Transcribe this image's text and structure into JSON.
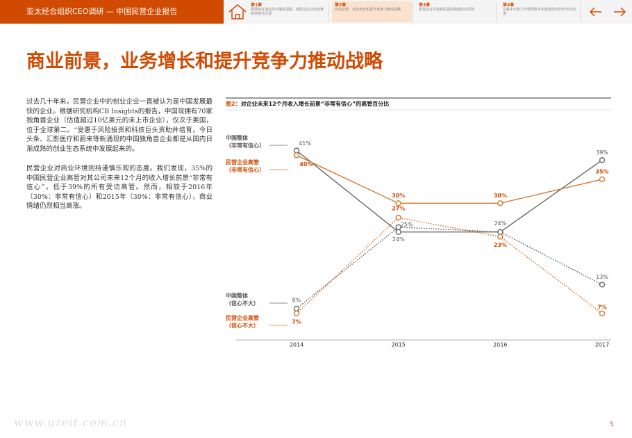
{
  "header": {
    "title": "亚太经合组织CEO调研 — 中国民营企业报告",
    "chapters": [
      {
        "label": "第1章",
        "text": "即便存在潜在的不确定因素，但民营企业对前景依然相当乐观"
      },
      {
        "label": "第2章",
        "text": "商业前景，业务增长和提升竞争力推动战略"
      },
      {
        "label": "第3章",
        "text": "民营企业寻找新机遇并积极应对风险"
      },
      {
        "label": "第4章",
        "text": "在数字化和工作场所数字化转型的时代中与时俱进"
      }
    ]
  },
  "page": {
    "title": "商业前景，业务增长和提升竞争力推动战略",
    "paragraphs": [
      "过去几十年来，民营企业中的创业企业一直被认为是中国发展最快的企业。根据研究机构CB Insights的报告，中国现拥有70家独角兽企业（估值超过10亿美元的未上市企业），仅次于美国，位于全球第二。“受惠于风险投资和科技巨头资助并培育，今日头条、汇影医疗和蔚来等新涌现的中国独角兽企业都是从国内日渐成熟的创业生态系统中发展起来的。",
      "民营企业对商业环境则持谨慎乐观的态度。我们发现，35%的中国民营企业高管对其公司未来12个月的收入增长前景“非常有信心”，低于39%的所有受访高管。然而，相较于2016年（30%：非常有信心）和2015年（30%：非常有信心），商业情绪仍然相当高涨。"
    ],
    "watermark": "www.uzeit.com.cn",
    "page_number": "5"
  },
  "chart_data": {
    "type": "line",
    "figure_label": "图2：",
    "title": "对企业未来12个月收入增长前景“非常有信心”的高管百分比",
    "categories": [
      "2014",
      "2015",
      "2016",
      "2017"
    ],
    "ylim": [
      0,
      45
    ],
    "series": [
      {
        "name": "中国整体\n（非常有信心）",
        "color": "#666666",
        "line_style": "solid",
        "values": [
          41,
          24,
          24,
          39
        ],
        "value_labels": [
          "41%",
          "24%",
          "24%",
          "39%"
        ]
      },
      {
        "name": "民营企业高管\n（非常有信心）",
        "color": "#d9762b",
        "line_style": "solid",
        "values": [
          40,
          30,
          30,
          35
        ],
        "value_labels": [
          "40%",
          "30%",
          "30%",
          "35%"
        ]
      },
      {
        "name": "中国整体\n（信心不大）",
        "color": "#666666",
        "line_style": "dotted",
        "values": [
          8,
          25,
          24,
          13
        ],
        "value_labels": [
          "8%",
          "25%",
          null,
          "13%"
        ]
      },
      {
        "name": "民营企业高管\n（信心不大）",
        "color": "#d9762b",
        "line_style": "dotted",
        "values": [
          7,
          27,
          23,
          7
        ],
        "value_labels": [
          "7%",
          "27%",
          "23%",
          "7%"
        ]
      }
    ]
  }
}
